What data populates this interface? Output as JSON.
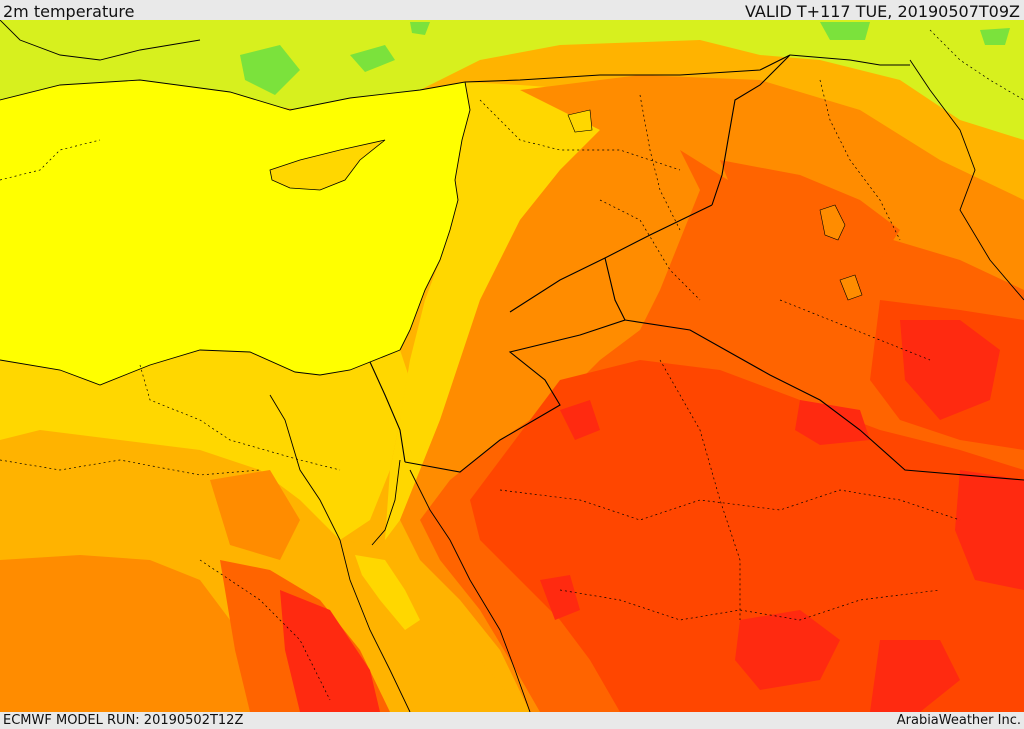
{
  "header": {
    "title": "2m temperature",
    "valid_time": "VALID T+117 TUE, 20190507T09Z"
  },
  "footer": {
    "model_run": "ECMWF MODEL RUN: 20190502T12Z",
    "credit": "ArabiaWeather Inc."
  },
  "palette": {
    "green": "#7be23c",
    "light_yellow_green": "#d7f01e",
    "yellow": "#ffff00",
    "gold": "#ffd700",
    "light_orange": "#ffb300",
    "orange": "#ff8c00",
    "dark_orange": "#ff6400",
    "red_orange": "#ff4600",
    "red": "#ff2a10",
    "border": "#000000"
  }
}
